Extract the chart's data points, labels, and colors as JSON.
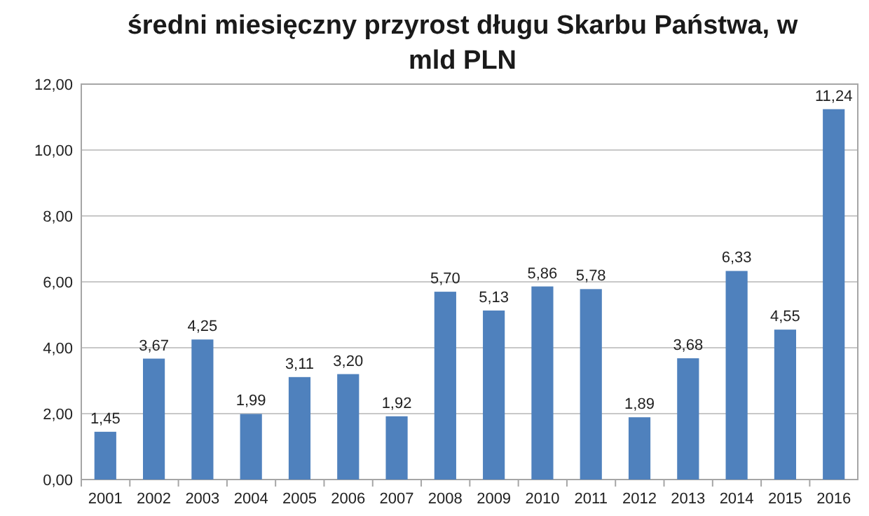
{
  "chart_data": {
    "type": "bar",
    "title": "średni miesięczny przyrost długu Skarbu Państwa, w mld PLN",
    "categories": [
      "2001",
      "2002",
      "2003",
      "2004",
      "2005",
      "2006",
      "2007",
      "2008",
      "2009",
      "2010",
      "2011",
      "2012",
      "2013",
      "2014",
      "2015",
      "2016"
    ],
    "values": [
      1.45,
      3.67,
      4.25,
      1.99,
      3.11,
      3.2,
      1.92,
      5.7,
      5.13,
      5.86,
      5.78,
      1.89,
      3.68,
      6.33,
      4.55,
      11.24
    ],
    "value_labels": [
      "1,45",
      "3,67",
      "4,25",
      "1,99",
      "3,11",
      "3,20",
      "1,92",
      "5,70",
      "5,13",
      "5,86",
      "5,78",
      "1,89",
      "3,68",
      "6,33",
      "4,55",
      "11,24"
    ],
    "color": "#4f81bd",
    "ylim": [
      0,
      12
    ],
    "yticks": [
      {
        "value": 0,
        "label": "0,00"
      },
      {
        "value": 2,
        "label": "2,00"
      },
      {
        "value": 4,
        "label": "4,00"
      },
      {
        "value": 6,
        "label": "6,00"
      },
      {
        "value": 8,
        "label": "8,00"
      },
      {
        "value": 10,
        "label": "10,00"
      },
      {
        "value": 12,
        "label": "12,00"
      }
    ],
    "grid": "y"
  }
}
